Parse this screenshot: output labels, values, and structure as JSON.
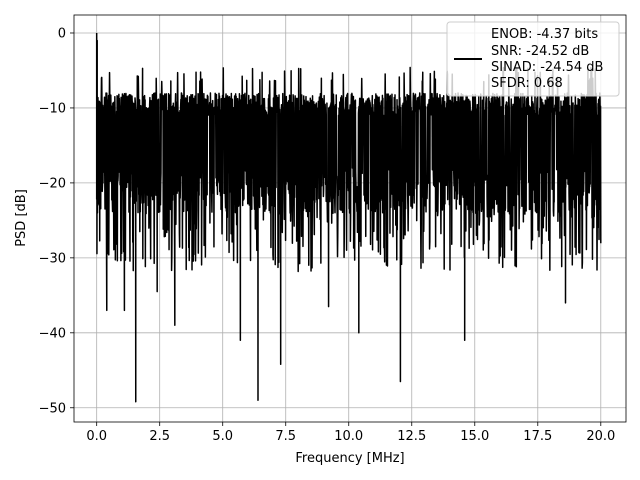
{
  "chart_data": {
    "type": "line",
    "title": "",
    "xlabel": "Frequency [MHz]",
    "ylabel": "PSD [dB]",
    "xlim": [
      -0.9,
      21.0
    ],
    "ylim": [
      -51.9,
      2.4
    ],
    "xticks": [
      0.0,
      2.5,
      5.0,
      7.5,
      10.0,
      12.5,
      15.0,
      17.5,
      20.0
    ],
    "xtick_labels": [
      "0.0",
      "2.5",
      "5.0",
      "7.5",
      "10.0",
      "12.5",
      "15.0",
      "17.5",
      "20.0"
    ],
    "yticks": [
      0,
      -10,
      -20,
      -30,
      -40,
      -50
    ],
    "ytick_labels": [
      "0",
      "−10",
      "−20",
      "−30",
      "−40",
      "−50"
    ],
    "grid": true,
    "legend_position": "top-right",
    "legend_lines": [
      "ENOB: -4.37 bits",
      "SNR: -24.52 dB",
      "SINAD: -24.54 dB",
      "SFDR: 0.68"
    ],
    "series": [
      {
        "color": "#000000",
        "x_range": [
          0.0,
          20.0
        ],
        "y_typical_range": [
          -24,
          -8
        ],
        "peak": {
          "x": 0.0,
          "y": 0.0
        },
        "deep_dips": [
          {
            "x": 0.4,
            "y": -37
          },
          {
            "x": 1.1,
            "y": -37
          },
          {
            "x": 1.55,
            "y": -49.2
          },
          {
            "x": 2.4,
            "y": -34.5
          },
          {
            "x": 3.1,
            "y": -39
          },
          {
            "x": 5.7,
            "y": -41
          },
          {
            "x": 6.4,
            "y": -49
          },
          {
            "x": 7.3,
            "y": -44.2
          },
          {
            "x": 9.2,
            "y": -36.5
          },
          {
            "x": 10.4,
            "y": -40
          },
          {
            "x": 12.05,
            "y": -46.5
          },
          {
            "x": 14.6,
            "y": -41
          },
          {
            "x": 18.6,
            "y": -36
          }
        ]
      }
    ]
  }
}
